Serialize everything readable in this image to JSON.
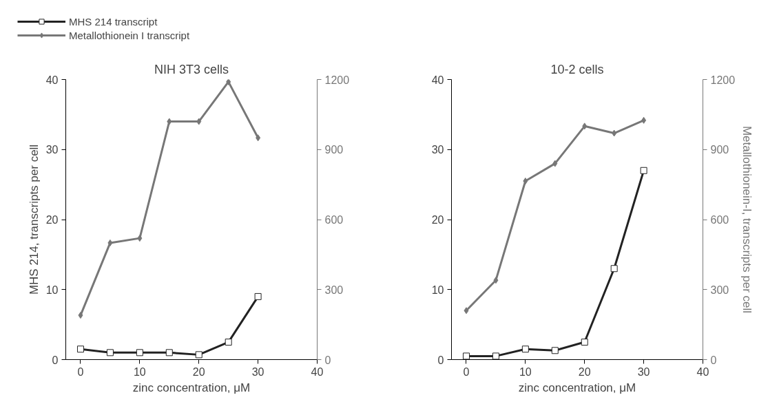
{
  "chart_data": [
    {
      "type": "line",
      "title": "NIH 3T3 cells",
      "xlabel": "zinc concentration, μM",
      "ylabel": "MHS 214, transcripts per cell",
      "x": [
        0,
        5,
        10,
        15,
        20,
        25,
        30
      ],
      "xlim": [
        -2.5,
        40
      ],
      "xticks": [
        0,
        10,
        20,
        30,
        40
      ],
      "ylim": [
        0,
        40
      ],
      "yticks": [
        0,
        10,
        20,
        30,
        40
      ],
      "y2lim": [
        0,
        1200
      ],
      "y2ticks": [
        0,
        300,
        600,
        900,
        1200
      ],
      "legend": "top left",
      "grid": false,
      "series": [
        {
          "name": "MHS 214 transcript",
          "color": "#222222",
          "marker": "square",
          "values": [
            1.5,
            1,
            1,
            1,
            0.7,
            2.5,
            9
          ]
        },
        {
          "name": "Metallothionein I transcript",
          "color": "#777777",
          "marker": "diamond",
          "axis": "y2",
          "values": [
            190,
            500,
            520,
            1020,
            1020,
            1190,
            950
          ]
        }
      ]
    },
    {
      "type": "line",
      "title": "10-2 cells",
      "xlabel": "zinc concentration, μM",
      "y2label": "Metallothionein-I, transcripts per cell",
      "x": [
        0,
        5,
        10,
        15,
        20,
        25,
        30
      ],
      "xlim": [
        -2.5,
        40
      ],
      "xticks": [
        0,
        10,
        20,
        30,
        40
      ],
      "ylim": [
        0,
        40
      ],
      "yticks": [
        0,
        10,
        20,
        30,
        40
      ],
      "y2lim": [
        0,
        1200
      ],
      "y2ticks": [
        0,
        300,
        600,
        900,
        1200
      ],
      "grid": false,
      "series": [
        {
          "color": "#222222",
          "marker": "square",
          "values": [
            0.5,
            0.5,
            1.5,
            1.3,
            2.5,
            13,
            27
          ]
        },
        {
          "color": "#777777",
          "marker": "diamond",
          "axis": "y2",
          "values": [
            210,
            340,
            765,
            840,
            1000,
            970,
            1025
          ]
        }
      ]
    }
  ]
}
